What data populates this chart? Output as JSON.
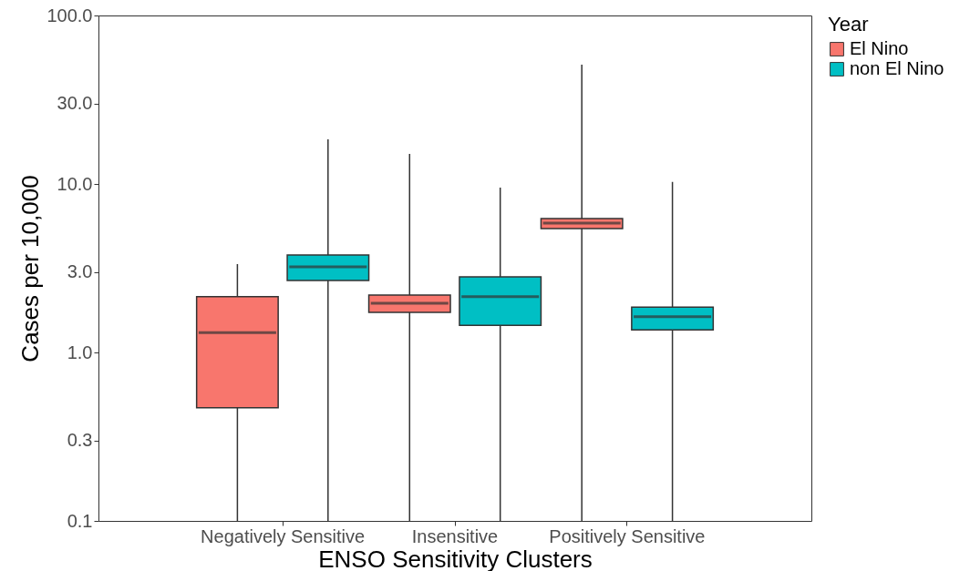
{
  "chart_data": {
    "type": "box",
    "xlabel": "ENSO Sensitivity Clusters",
    "ylabel": "Cases per 10,000",
    "legend_title": "Year",
    "legend": "right",
    "log": true,
    "grid": false,
    "categories": [
      "Negatively Sensitive",
      "Insensitive",
      "Positively Sensitive"
    ],
    "ylim": [
      0.1,
      100
    ],
    "yticks": [
      {
        "value": 0.1,
        "label": "0.1"
      },
      {
        "value": 0.3,
        "label": "0.3"
      },
      {
        "value": 1,
        "label": "1.0"
      },
      {
        "value": 3,
        "label": "3.0"
      },
      {
        "value": 10,
        "label": "10.0"
      },
      {
        "value": 30,
        "label": "30.0"
      },
      {
        "value": 100,
        "label": "100.0"
      }
    ],
    "series": [
      {
        "name": "El Nino",
        "color": "#f8766d",
        "boxes": [
          {
            "low": 0.1,
            "q1": 0.47,
            "median": 1.31,
            "q3": 2.14,
            "high": 3.34
          },
          {
            "low": 0.1,
            "q1": 1.73,
            "median": 1.96,
            "q3": 2.19,
            "high": 15.1
          },
          {
            "low": 0.1,
            "q1": 5.43,
            "median": 5.86,
            "q3": 6.23,
            "high": 51
          }
        ]
      },
      {
        "name": "non El Nino",
        "color": "#00bfc4",
        "boxes": [
          {
            "low": 0.1,
            "q1": 2.67,
            "median": 3.22,
            "q3": 3.79,
            "high": 18.4
          },
          {
            "low": 0.1,
            "q1": 1.45,
            "median": 2.14,
            "q3": 2.81,
            "high": 9.5
          },
          {
            "low": 0.1,
            "q1": 1.36,
            "median": 1.63,
            "q3": 1.86,
            "high": 10.3
          }
        ]
      }
    ]
  }
}
